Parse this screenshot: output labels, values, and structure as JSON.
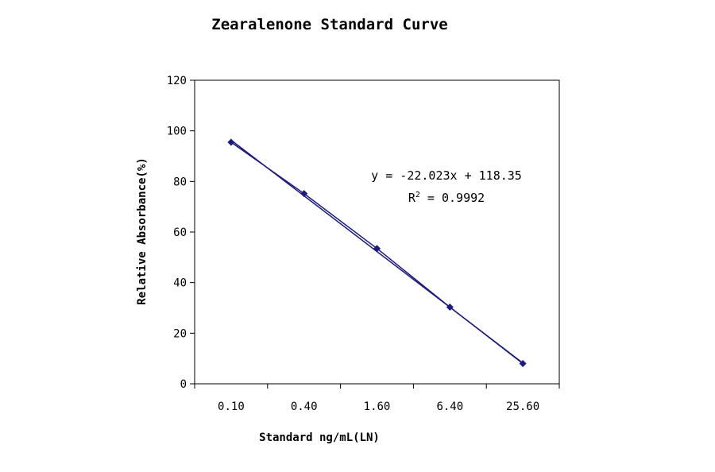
{
  "chart_data": {
    "type": "scatter",
    "title": "Zearalenone Standard Curve",
    "xlabel": "Standard ng/mL(LN)",
    "ylabel": "Relative Absorbance(%)",
    "categories": [
      "0.10",
      "0.40",
      "1.60",
      "6.40",
      "25.60"
    ],
    "series": [
      {
        "values": [
          95.5,
          75.2,
          53.5,
          30.3,
          8.0
        ]
      }
    ],
    "trendline": {
      "slope": -22.023,
      "intercept": 118.35,
      "equation": "y = -22.023x + 118.35",
      "r_squared_label": "R",
      "r_squared_sup": "2",
      "r_squared_value": " = 0.9992"
    },
    "ylim": [
      0,
      120
    ],
    "yticks": [
      "0",
      "20",
      "40",
      "60",
      "80",
      "100",
      "120"
    ],
    "grid": false,
    "legend": "none",
    "colors": {
      "marker": "#1a1a80",
      "trendline": "#1a1a80",
      "axis": "#000000"
    }
  }
}
